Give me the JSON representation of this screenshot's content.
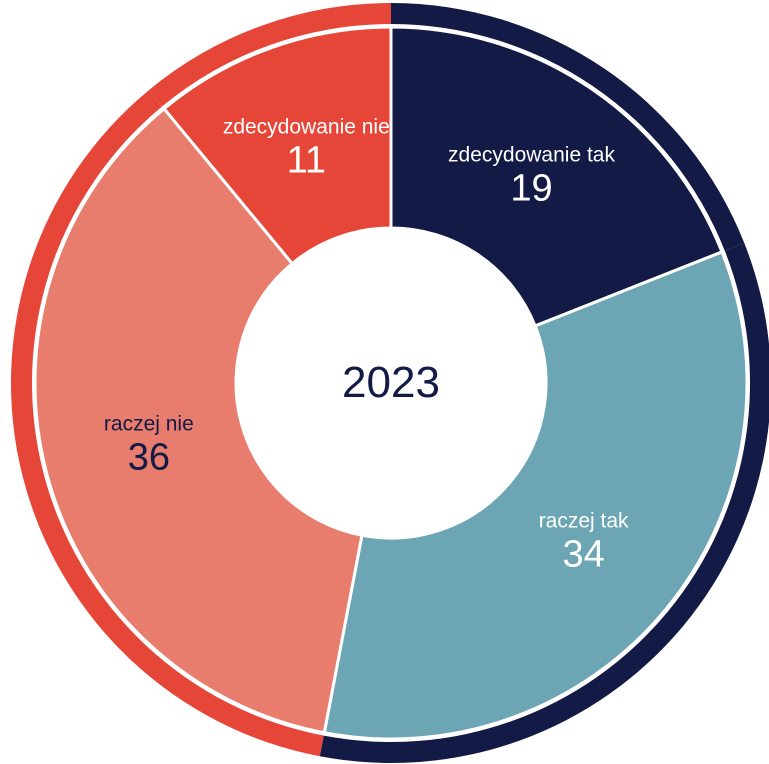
{
  "chart_data": {
    "type": "donut",
    "center_label": "2023",
    "categories": [
      "zdecydowanie tak",
      "raczej tak",
      "raczej nie",
      "zdecydowanie nie"
    ],
    "values": [
      19,
      34,
      36,
      11
    ],
    "colors": [
      "#121a45",
      "#6ca5b3",
      "#e87d6d",
      "#e64637"
    ],
    "ring_colors": [
      "#121a45",
      "#121a45",
      "#e64637",
      "#e64637"
    ],
    "label_colors": [
      "#ffffff",
      "#ffffff",
      "#121a45",
      "#ffffff"
    ]
  }
}
